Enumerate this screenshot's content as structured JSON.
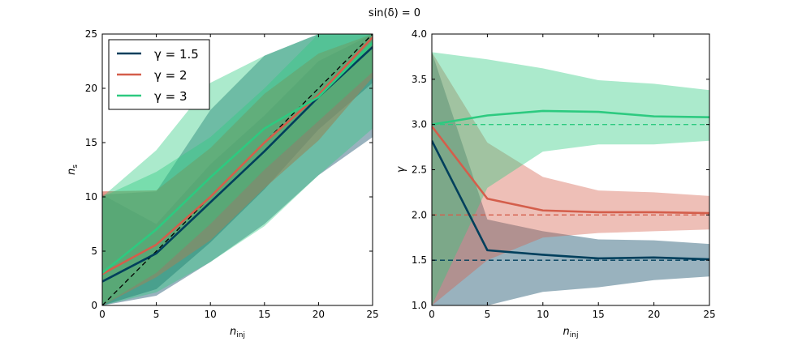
{
  "figure": {
    "suptitle": "sin(δ) = 0"
  },
  "chart_data": [
    {
      "type": "line",
      "xlabel": "n_inj",
      "ylabel": "n_s",
      "xlim": [
        0,
        25
      ],
      "ylim": [
        0,
        25
      ],
      "xticks": [
        0,
        5,
        10,
        15,
        20,
        25
      ],
      "yticks": [
        0,
        5,
        10,
        15,
        20,
        25
      ],
      "legend_position": "top-left",
      "reference_lines": [
        {
          "color": "#000000",
          "x": [
            0,
            25
          ],
          "y": [
            0,
            25
          ],
          "style": "dashed"
        }
      ],
      "x": [
        0,
        5,
        10,
        15,
        20,
        25
      ],
      "series": [
        {
          "name": "γ = 1.5",
          "color": "#003f5c",
          "values": [
            2.2,
            4.8,
            9.5,
            14.2,
            19.2,
            23.8
          ],
          "band_inner": [
            [
              0,
              10.2
            ],
            [
              1.5,
              7.5
            ],
            [
              5.8,
              13
            ],
            [
              10.7,
              17.5
            ],
            [
              16.2,
              22.5
            ],
            [
              20.5,
              25
            ]
          ],
          "band_outer": [
            [
              0,
              10.2
            ],
            [
              0.9,
              10.5
            ],
            [
              4,
              18
            ],
            [
              7.5,
              23
            ],
            [
              12,
              25
            ],
            [
              15.5,
              25
            ]
          ]
        },
        {
          "name": "γ = 2",
          "color": "#d45e4b",
          "values": [
            2.9,
            5.6,
            10,
            15,
            19.4,
            24.7
          ],
          "band_inner": [
            [
              0,
              10.5
            ],
            [
              2.6,
              10.6
            ],
            [
              6,
              14.5
            ],
            [
              10.8,
              19.5
            ],
            [
              15.2,
              23.2
            ],
            [
              21,
              25
            ]
          ],
          "band_outer": [
            [
              0,
              10.5
            ],
            [
              2.6,
              10.6
            ],
            [
              6,
              14.5
            ],
            [
              10.8,
              19.5
            ],
            [
              15.2,
              23.2
            ],
            [
              21,
              25
            ]
          ]
        },
        {
          "name": "γ = 3",
          "color": "#2dca80",
          "values": [
            3.0,
            7.0,
            11.8,
            16.3,
            19.2,
            24.2
          ],
          "band_inner": [
            [
              0,
              10
            ],
            [
              3,
              12.3
            ],
            [
              7.5,
              15.5
            ],
            [
              12.5,
              20
            ],
            [
              17,
              25
            ],
            [
              21.5,
              25
            ]
          ],
          "band_outer": [
            [
              0,
              10
            ],
            [
              1.2,
              14.3
            ],
            [
              4,
              20.5
            ],
            [
              7.3,
              23
            ],
            [
              12,
              25
            ],
            [
              16.3,
              25
            ]
          ]
        }
      ]
    },
    {
      "type": "line",
      "xlabel": "n_inj",
      "ylabel": "γ",
      "xlim": [
        0,
        25
      ],
      "ylim": [
        1,
        4
      ],
      "xticks": [
        0,
        5,
        10,
        15,
        20,
        25
      ],
      "yticks": [
        1.0,
        1.5,
        2.0,
        2.5,
        3.0,
        3.5,
        4.0
      ],
      "reference_lines": [
        {
          "color": "#003f5c",
          "y": 1.5,
          "style": "dashed"
        },
        {
          "color": "#d45e4b",
          "y": 2.0,
          "style": "dashed"
        },
        {
          "color": "#2dca80",
          "y": 3.0,
          "style": "dashed"
        }
      ],
      "x": [
        0,
        5,
        10,
        15,
        20,
        25
      ],
      "series": [
        {
          "name": "γ = 1.5",
          "color": "#003f5c",
          "values": [
            2.82,
            1.61,
            1.56,
            1.52,
            1.53,
            1.51
          ],
          "band": [
            [
              1.0,
              3.8
            ],
            [
              1.0,
              1.95
            ],
            [
              1.15,
              1.82
            ],
            [
              1.2,
              1.73
            ],
            [
              1.28,
              1.72
            ],
            [
              1.32,
              1.68
            ]
          ]
        },
        {
          "name": "γ = 2",
          "color": "#d45e4b",
          "values": [
            2.98,
            2.18,
            2.05,
            2.03,
            2.03,
            2.02
          ],
          "band": [
            [
              1.0,
              3.8
            ],
            [
              1.5,
              2.8
            ],
            [
              1.75,
              2.42
            ],
            [
              1.8,
              2.27
            ],
            [
              1.82,
              2.25
            ],
            [
              1.84,
              2.21
            ]
          ]
        },
        {
          "name": "γ = 3",
          "color": "#2dca80",
          "values": [
            3.0,
            3.1,
            3.15,
            3.14,
            3.09,
            3.08
          ],
          "band": [
            [
              1.0,
              3.8
            ],
            [
              2.3,
              3.72
            ],
            [
              2.7,
              3.62
            ],
            [
              2.78,
              3.49
            ],
            [
              2.78,
              3.45
            ],
            [
              2.82,
              3.38
            ]
          ]
        }
      ]
    }
  ]
}
